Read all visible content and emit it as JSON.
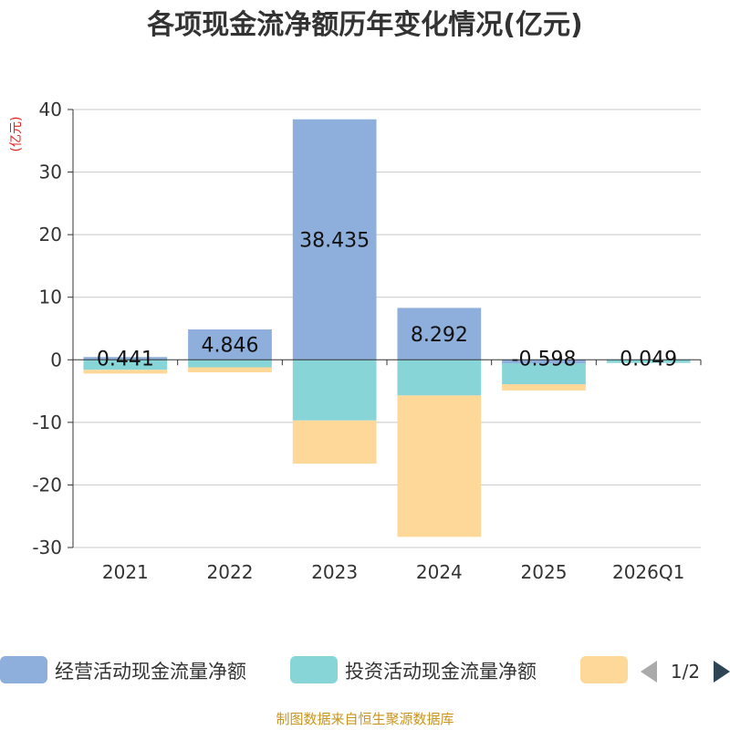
{
  "chart_data": {
    "type": "bar",
    "stacked": true,
    "title": "各项现金流净额历年变化情况(亿元)",
    "ylabel": "(亿元)",
    "xlabel": "",
    "categories": [
      "2021",
      "2022",
      "2023",
      "2024",
      "2025",
      "2026Q1"
    ],
    "ylim": [
      -30,
      40
    ],
    "yticks": [
      40,
      30,
      20,
      10,
      0,
      -10,
      -20,
      -30
    ],
    "series": [
      {
        "name": "经营活动现金流量净额",
        "color": "#8eaedb",
        "values": [
          0.441,
          4.846,
          38.435,
          8.292,
          -0.598,
          0.049
        ]
      },
      {
        "name": "投资活动现金流量净额",
        "color": "#88d5d8",
        "values": [
          -1.6,
          -1.2,
          -9.7,
          -5.7,
          -3.3,
          -0.5
        ]
      },
      {
        "name": "",
        "color": "#fed899",
        "values": [
          -0.6,
          -0.8,
          -6.9,
          -22.6,
          -1.0,
          0
        ]
      }
    ],
    "data_labels": [
      "0.441",
      "4.846",
      "38.435",
      "8.292",
      "-0.598",
      "0.049"
    ],
    "legend": {
      "position": "bottom",
      "page": "1/2"
    }
  },
  "source": "制图数据来自恒生聚源数据库",
  "colors": {
    "axis": "#333333",
    "grid": "#c8c8c8",
    "unit": "#e0241b",
    "source": "#c8951e",
    "arrow_disabled": "#aaaaaa",
    "arrow_active": "#2f4554"
  }
}
